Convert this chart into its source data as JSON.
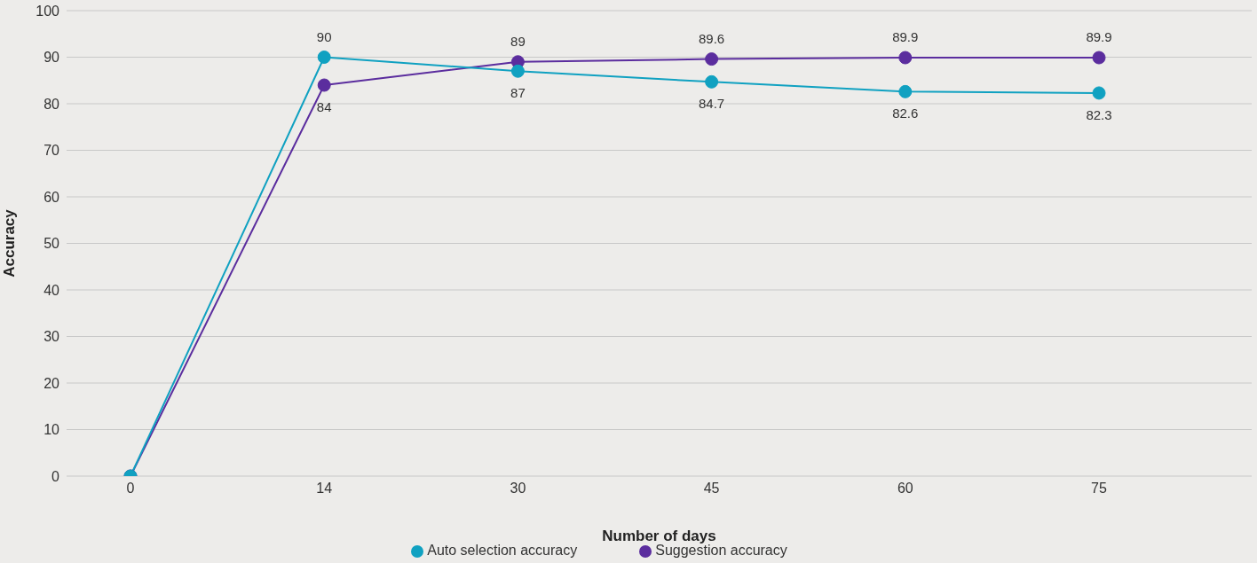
{
  "chart_data": {
    "type": "line",
    "xlabel": "Number of days",
    "ylabel": "Accuracy",
    "categories": [
      "0",
      "14",
      "30",
      "45",
      "60",
      "75"
    ],
    "series": [
      {
        "name": "Suggestion accuracy",
        "color": "#5b2d9e",
        "values": [
          0,
          84,
          89,
          89.6,
          89.9,
          89.9
        ],
        "value_labels": [
          null,
          "84",
          "89",
          "89.6",
          "89.9",
          "89.9"
        ]
      },
      {
        "name": "Auto selection accuracy",
        "color": "#10a1c1",
        "values": [
          0,
          90,
          87,
          84.7,
          82.6,
          82.3
        ],
        "value_labels": [
          null,
          "90",
          "87",
          "84.7",
          "82.6",
          "82.3"
        ]
      }
    ],
    "ylim": [
      0,
      100
    ],
    "yticks": [
      0,
      10,
      20,
      30,
      40,
      50,
      60,
      70,
      80,
      90,
      100
    ],
    "grid": "y",
    "legend": "bottom",
    "marker": "circle",
    "line_style": "solid"
  }
}
